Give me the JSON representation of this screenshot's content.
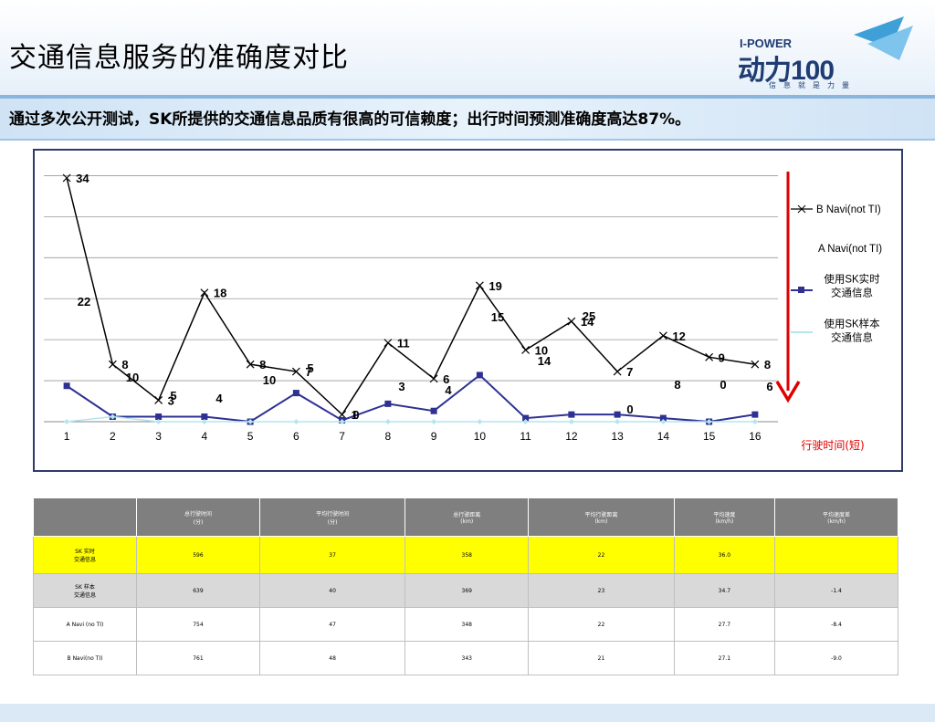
{
  "page": {
    "title": "交通信息服务的准确度对比",
    "subtitle": "通过多次公开测试，SK所提供的交通信息品质有很高的可信赖度；出行时间预测准确度高达87%。",
    "logo": {
      "top": "I-POWER",
      "brand": "动力100",
      "slogan": "信息就是力量"
    }
  },
  "chart_data": {
    "type": "line",
    "x": [
      1,
      2,
      3,
      4,
      5,
      6,
      7,
      8,
      9,
      10,
      11,
      12,
      13,
      14,
      15,
      16
    ],
    "ylim": [
      0,
      34
    ],
    "series": [
      {
        "name": "B Navi(not TI)",
        "color": "#000000",
        "marker": "x",
        "values": [
          34,
          8,
          3,
          18,
          8,
          7,
          1,
          11,
          6,
          19,
          10,
          14,
          7,
          12,
          9,
          8
        ]
      },
      {
        "name": "A Navi(not TI)",
        "color": "#ffffff",
        "marker": "none",
        "values": [
          22,
          10,
          5,
          4,
          10,
          5,
          0,
          3,
          4,
          15,
          14,
          25,
          0,
          8,
          0,
          6
        ]
      },
      {
        "name": "使用SK实时\n交通信息",
        "color": "#2e3192",
        "marker": "square",
        "values": [
          5,
          0.7,
          0.7,
          0.7,
          0,
          4,
          0.2,
          2.5,
          1.5,
          6.5,
          0.5,
          1,
          1,
          0.5,
          0,
          1
        ]
      },
      {
        "name": "使用SK样本\n交通信息",
        "color": "#b3e6ef",
        "marker": "diamond",
        "values": [
          0,
          0.7,
          0,
          0,
          0,
          0,
          0,
          0,
          0,
          0,
          0,
          0,
          0,
          0,
          0,
          0
        ]
      }
    ],
    "label_series": [
      {
        "values": [
          "34",
          "8",
          "3",
          "18",
          "8",
          "7",
          "1",
          "11",
          "6",
          "19",
          "10",
          "14",
          "7",
          "12",
          "9",
          "8"
        ]
      },
      {
        "values": [
          "22",
          "10",
          "5",
          "4",
          "10",
          "5",
          "0",
          "3",
          "4",
          "15",
          "14",
          "25",
          "0",
          "8",
          "0",
          "6"
        ]
      }
    ],
    "arrow_label": "行驶时间(短)",
    "grid": true
  },
  "table": {
    "headers": [
      "",
      "总行驶时间\n(分)",
      "平均行驶时间\n(分)",
      "总行驶距离\n(km)",
      "平均行驶距离\n(km)",
      "平均速度\n(km/h)",
      "平均速度差\n(km/h)"
    ],
    "rows": [
      {
        "name": "SK 实时\n交通信息",
        "cells": [
          "596",
          "37",
          "358",
          "22",
          "36.0",
          ""
        ]
      },
      {
        "name": "SK 样本\n交通信息",
        "cells": [
          "639",
          "40",
          "369",
          "23",
          "34.7",
          "-1.4"
        ]
      },
      {
        "name": "A Navi (no TI)",
        "cells": [
          "754",
          "47",
          "348",
          "22",
          "27.7",
          "-8.4"
        ]
      },
      {
        "name": "B Navi(no TI)",
        "cells": [
          "761",
          "48",
          "343",
          "21",
          "27.1",
          "-9.0"
        ]
      }
    ],
    "highlight_color": "#ffff00"
  }
}
